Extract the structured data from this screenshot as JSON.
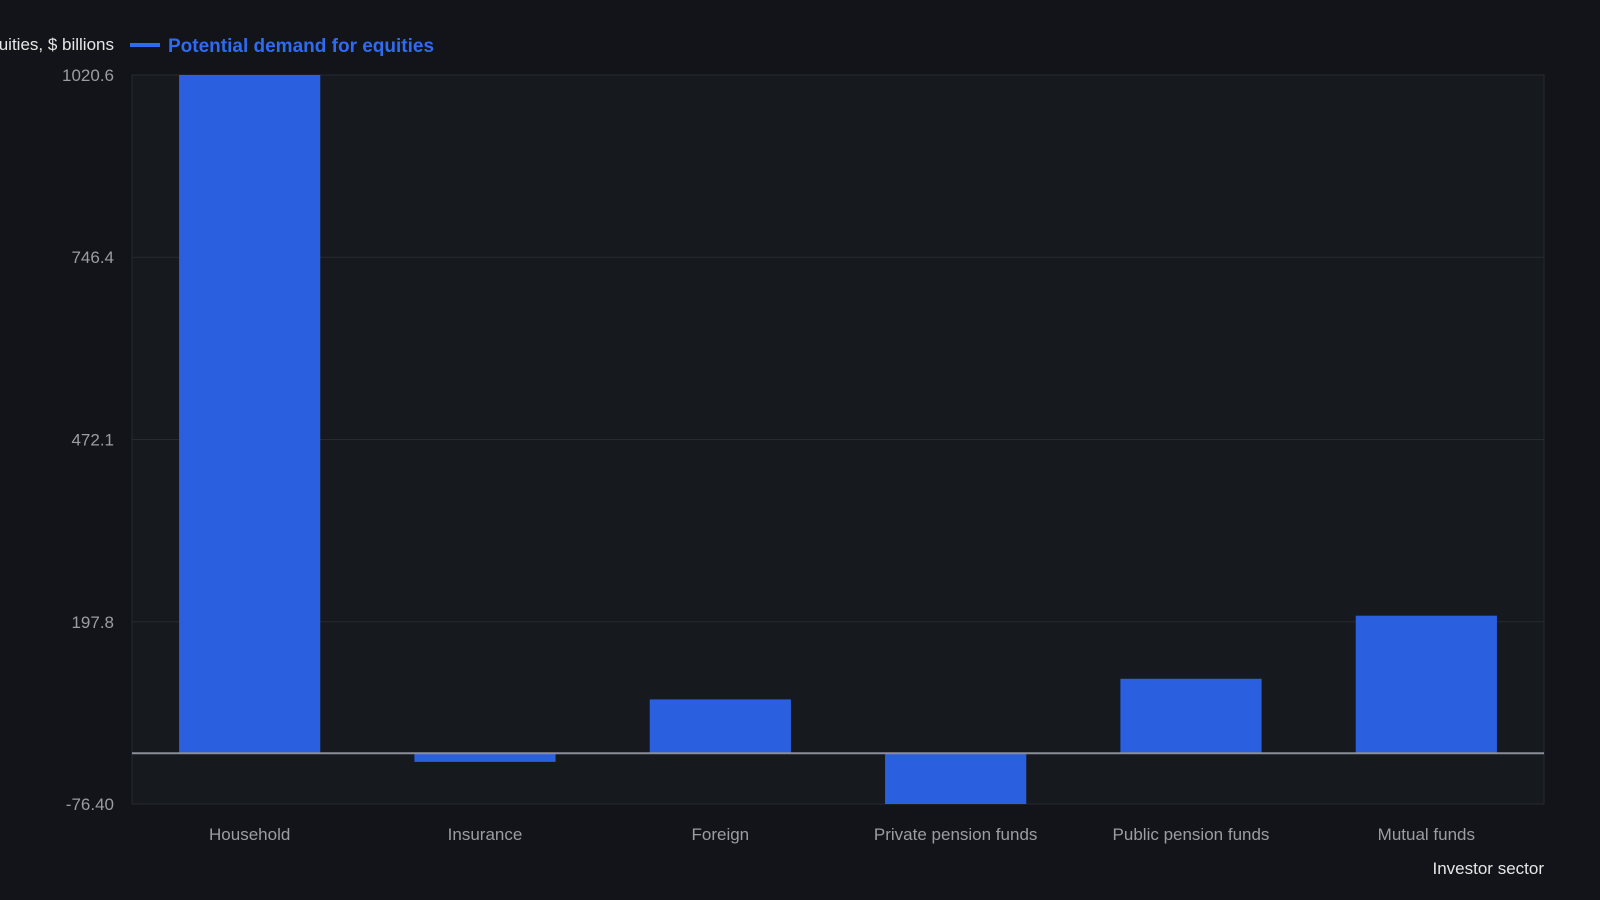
{
  "chart_data": {
    "type": "bar",
    "ylabel": "Potential demand for equities, $ billions",
    "xlabel": "Investor sector",
    "categories": [
      "Household",
      "Insurance",
      "Foreign",
      "Private pension funds",
      "Public pension funds",
      "Mutual funds"
    ],
    "series": [
      {
        "name": "Potential demand for equities",
        "values": [
          1020.6,
          -13,
          81,
          -76.4,
          112,
          207
        ]
      }
    ],
    "yticks": [
      "1020.6",
      "746.4",
      "472.1",
      "197.8",
      "-76.40"
    ],
    "ylim": [
      -76.4,
      1020.6
    ],
    "legend_position": "top-left",
    "grid": true,
    "colors": {
      "background": "#121419",
      "plot_background": "#16191e",
      "bar": "#2a5fe0",
      "grid": "#262a31",
      "zero_line": "#8a8e96",
      "legend_text": "#2f6bf0"
    }
  }
}
